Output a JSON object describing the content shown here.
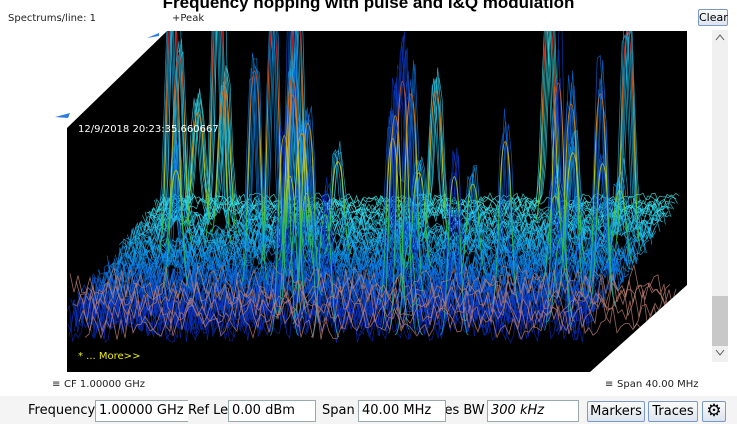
{
  "header": {
    "title": "Frequency hopping with pulse and I&Q modulation",
    "spectrums_per_line": "Spectrums/line: 1",
    "detector": "+Peak",
    "clear": "Clear"
  },
  "display": {
    "timestamp": "12/9/2018 20:23:35.660667",
    "more": "* ... More>>",
    "cf": "CF 1.00000 GHz",
    "span": "Span 40.00 MHz"
  },
  "controls": {
    "frequency_label": "Frequency",
    "frequency_value": "1.00000 GHz",
    "ref_lev_label": "Ref Lev",
    "ref_lev_value": "0.00 dBm",
    "span_label": "Span",
    "span_value": "40.00 MHz",
    "rbw_label": "Res BW",
    "rbw_value": "300 kHz",
    "markers": "Markers",
    "traces": "Traces"
  }
}
